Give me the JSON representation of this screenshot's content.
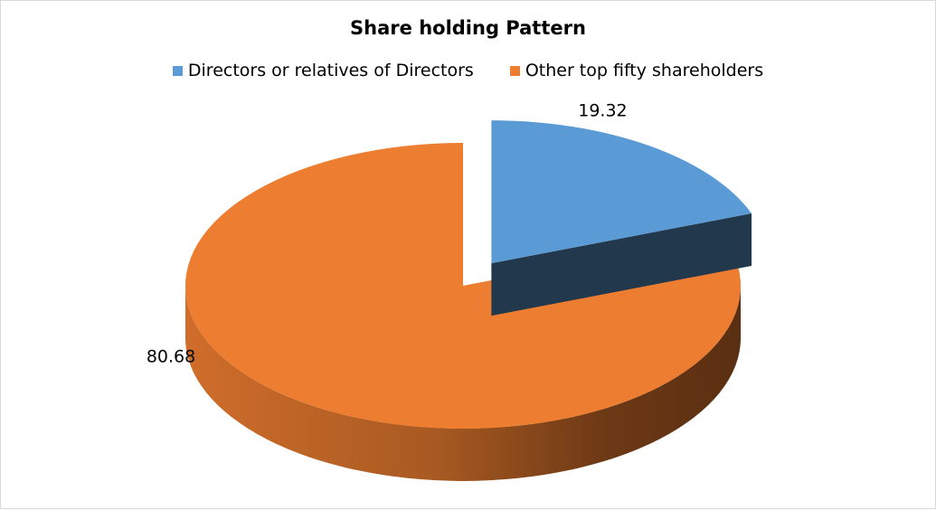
{
  "chart_data": {
    "type": "pie",
    "title": "Share holding Pattern",
    "legend_position": "top",
    "three_d": true,
    "exploded_slice": "Directors or relatives of Directors",
    "slices": [
      {
        "label": "Directors or relatives of Directors",
        "value": 19.32,
        "value_label": "19.32",
        "color": "#5b9bd5"
      },
      {
        "label": "Other top fifty shareholders",
        "value": 80.68,
        "value_label": "80.68",
        "color": "#ed7d31"
      }
    ]
  }
}
